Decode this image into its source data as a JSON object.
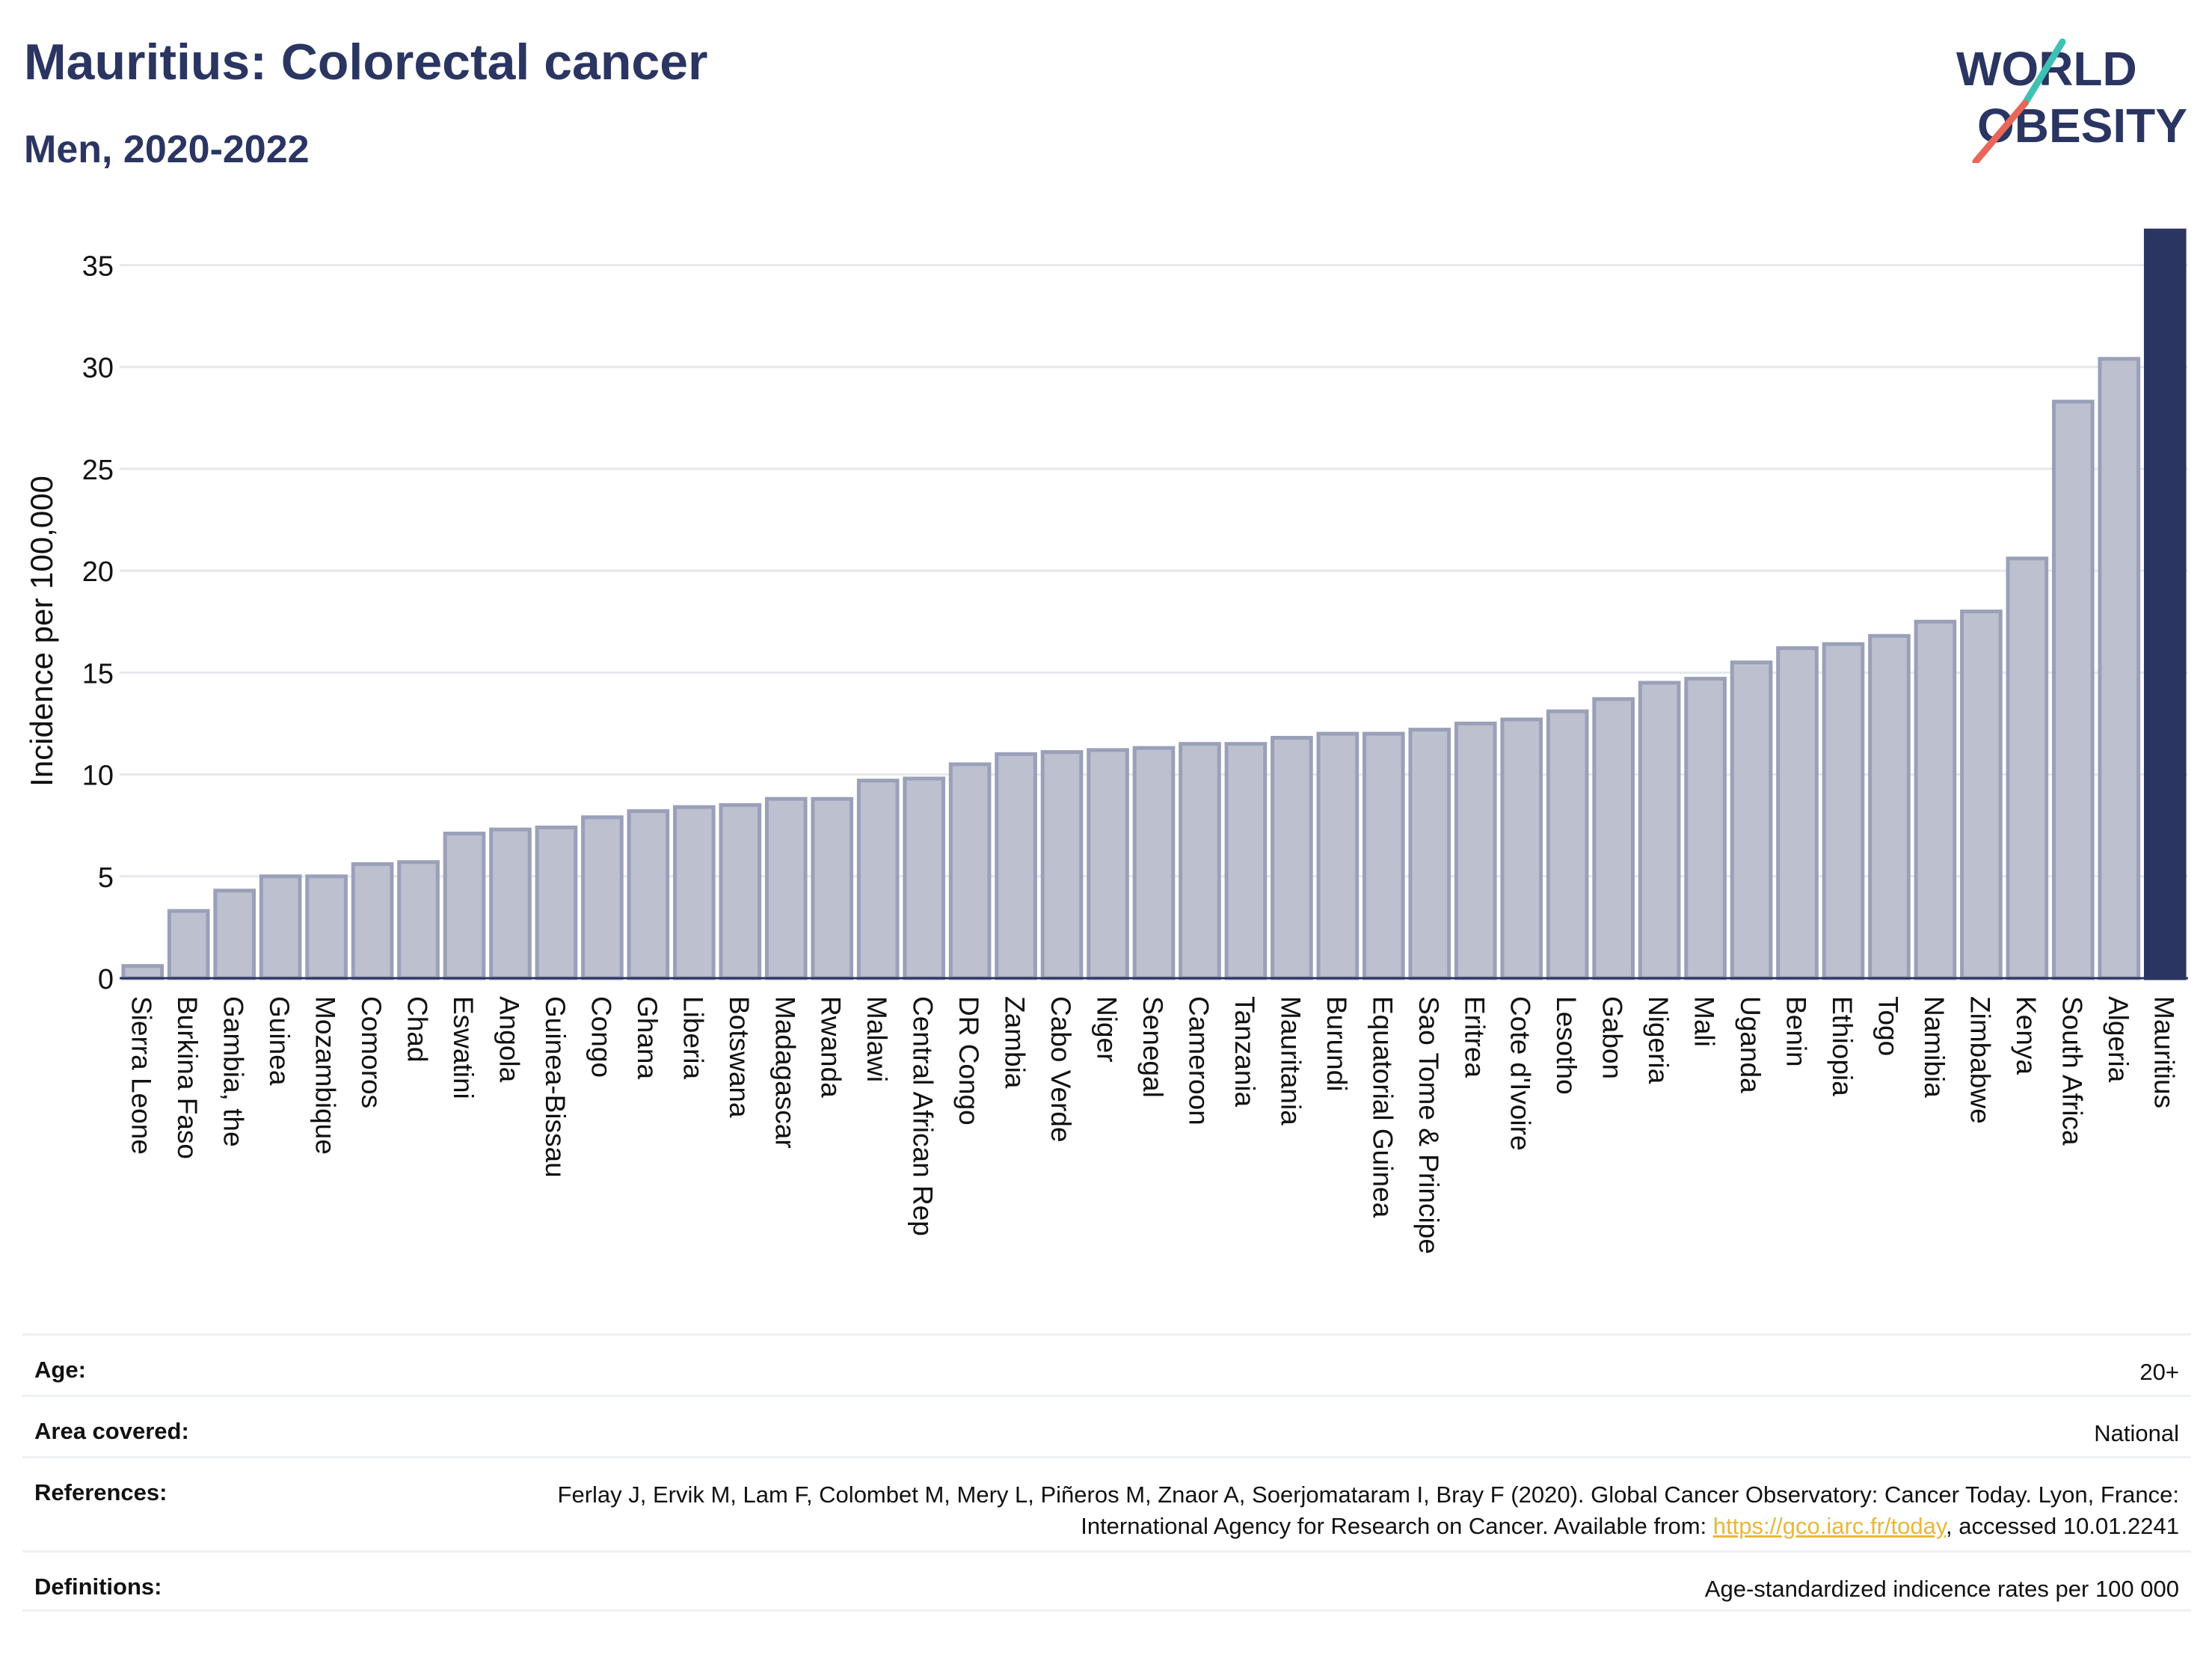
{
  "header": {
    "title": "Mauritius: Colorectal cancer",
    "subtitle": "Men, 2020-2022"
  },
  "logo": {
    "line1": "WORLD",
    "line2": "OBESITY",
    "accent_teal": "#3ec1b3",
    "accent_red": "#e8675a"
  },
  "colors": {
    "bar_fill": "#bcc0cf",
    "bar_stroke": "#9aa0b8",
    "highlight": "#2a3562",
    "grid": "#e6e8ee",
    "text": "#2a3562"
  },
  "chart_data": {
    "type": "bar",
    "ylabel": "Incidence per 100,000",
    "ylim": [
      0,
      37
    ],
    "yticks": [
      0,
      5,
      10,
      15,
      20,
      25,
      30,
      35
    ],
    "grid": true,
    "highlight_category": "Mauritius",
    "categories": [
      "Sierra Leone",
      "Burkina Faso",
      "Gambia, the",
      "Guinea",
      "Mozambique",
      "Comoros",
      "Chad",
      "Eswatini",
      "Angola",
      "Guinea-Bissau",
      "Congo",
      "Ghana",
      "Liberia",
      "Botswana",
      "Madagascar",
      "Rwanda",
      "Malawi",
      "Central African Rep",
      "DR Congo",
      "Zambia",
      "Cabo Verde",
      "Niger",
      "Senegal",
      "Cameroon",
      "Tanzania",
      "Mauritania",
      "Burundi",
      "Equatorial Guinea",
      "Sao Tome & Principe",
      "Eritrea",
      "Cote d'Ivoire",
      "Lesotho",
      "Gabon",
      "Nigeria",
      "Mali",
      "Uganda",
      "Benin",
      "Ethiopia",
      "Togo",
      "Namibia",
      "Zimbabwe",
      "Kenya",
      "South Africa",
      "Algeria",
      "Mauritius"
    ],
    "values": [
      0.6,
      3.3,
      4.3,
      5.0,
      5.0,
      5.6,
      5.7,
      7.1,
      7.3,
      7.4,
      7.9,
      8.2,
      8.4,
      8.5,
      8.8,
      8.8,
      9.7,
      9.8,
      10.5,
      11.0,
      11.1,
      11.2,
      11.3,
      11.5,
      11.5,
      11.8,
      12.0,
      12.0,
      12.2,
      12.5,
      12.7,
      13.1,
      13.7,
      14.5,
      14.7,
      15.5,
      16.2,
      16.4,
      16.8,
      17.5,
      18.0,
      20.6,
      28.3,
      30.4,
      36.7
    ]
  },
  "meta": {
    "age_label": "Age:",
    "age_value": "20+",
    "area_label": "Area covered:",
    "area_value": "National",
    "refs_label": "References:",
    "refs_text_1": "Ferlay J, Ervik M, Lam F, Colombet M, Mery L, Piñeros M, Znaor A, Soerjomataram I, Bray F (2020). Global Cancer Observatory: Cancer Today. Lyon, France: International Agency for Research on Cancer. Available from: ",
    "refs_link": "https://gco.iarc.fr/today",
    "refs_text_2": ", accessed 10.01.2241",
    "defs_label": "Definitions:",
    "defs_value": "Age-standardized indicence rates per 100 000"
  }
}
